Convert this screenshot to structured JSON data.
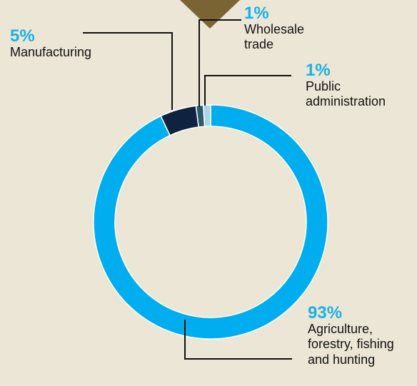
{
  "colors": {
    "background": "#ece6d6",
    "top_marker": "#7a6434",
    "percent_text": "#1ab0e8",
    "leader_line": "#111111"
  },
  "chart_data": {
    "type": "pie",
    "style": "donut",
    "slices": [
      {
        "label": "Agriculture, forestry, fishing and hunting",
        "label_lines": [
          "Agriculture,",
          "forestry, fishing",
          "and hunting"
        ],
        "value": 93,
        "display": "93%",
        "color": "#00adee"
      },
      {
        "label": "Manufacturing",
        "label_lines": [
          "Manufacturing"
        ],
        "value": 5,
        "display": "5%",
        "color": "#0f2240"
      },
      {
        "label": "Wholesale trade",
        "label_lines": [
          "Wholesale",
          "trade"
        ],
        "value": 1,
        "display": "1%",
        "color": "#2a5a6e"
      },
      {
        "label": "Public administration",
        "label_lines": [
          "Public",
          "administration"
        ],
        "value": 1,
        "display": "1%",
        "color": "#a7d7e8"
      }
    ]
  }
}
